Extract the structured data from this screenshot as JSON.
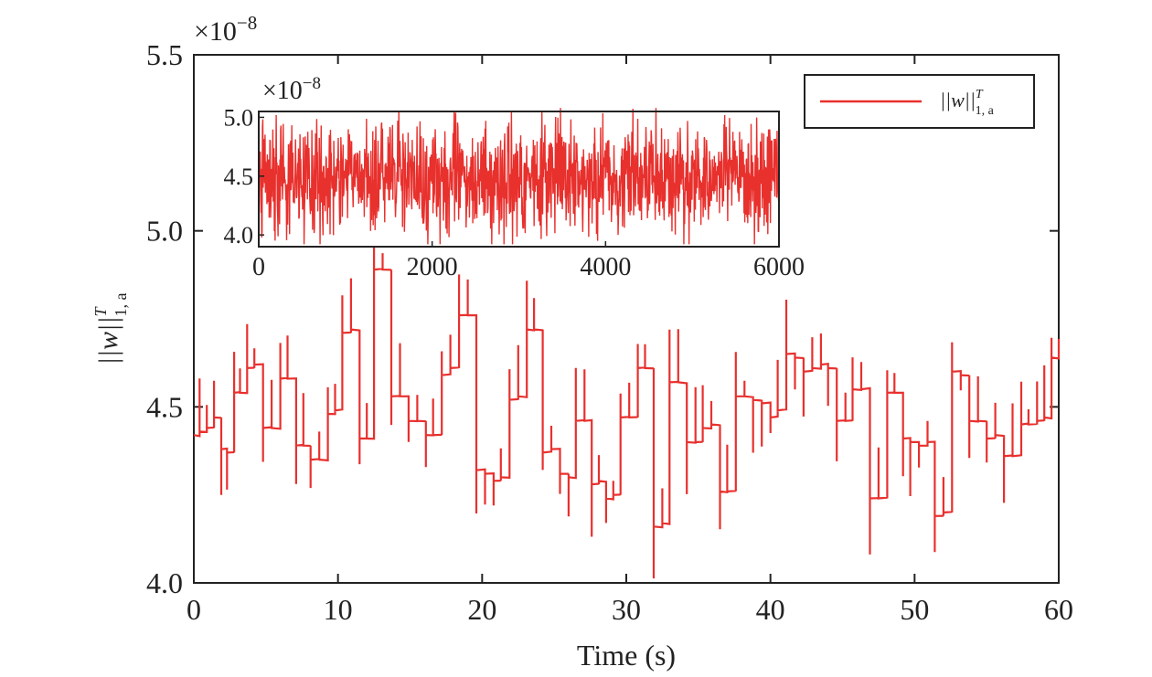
{
  "chart_data": [
    {
      "type": "line",
      "xlabel": "Time (s)",
      "ylabel_base": "||w||",
      "ylabel_sup": "T",
      "ylabel_sub": "1, a",
      "scale_exponent_label": "×10",
      "scale_exponent": "−8",
      "xlim": [
        0,
        60
      ],
      "ylim": [
        4.0,
        5.5
      ],
      "xticks": [
        0,
        10,
        20,
        30,
        40,
        50,
        60
      ],
      "xtick_labels": [
        "0",
        "10",
        "20",
        "30",
        "40",
        "50",
        "60"
      ],
      "yticks": [
        4.0,
        4.5,
        5.0,
        5.5
      ],
      "ytick_labels": [
        "4.0",
        "4.5",
        "5.0",
        "5.5"
      ],
      "legend": {
        "position": "top-right",
        "entry_base": "||w||",
        "entry_sup": "T",
        "entry_sub": "1, a"
      },
      "series": [
        {
          "color": "#e8302d",
          "x": [
            0,
            0.4,
            0.9,
            1.4,
            1.9,
            2.3,
            2.8,
            3.2,
            3.7,
            4.2,
            4.8,
            5.4,
            6.0,
            6.5,
            7.1,
            7.6,
            8.1,
            8.7,
            9.3,
            9.8,
            10.3,
            10.9,
            11.5,
            12.0,
            12.5,
            13.1,
            13.7,
            14.3,
            14.9,
            15.5,
            16.1,
            16.6,
            17.2,
            17.8,
            18.4,
            19.0,
            19.6,
            20.2,
            20.8,
            21.3,
            21.9,
            22.5,
            23.1,
            23.6,
            24.2,
            24.8,
            25.4,
            26.0,
            26.5,
            27.1,
            27.6,
            28.1,
            28.6,
            29.1,
            29.6,
            30.2,
            30.8,
            31.3,
            31.9,
            32.5,
            33.0,
            33.6,
            34.2,
            34.8,
            35.3,
            35.9,
            36.5,
            37.0,
            37.6,
            38.2,
            38.8,
            39.4,
            40.0,
            40.5,
            41.1,
            41.7,
            42.3,
            42.9,
            43.5,
            44.0,
            44.6,
            45.2,
            45.7,
            46.3,
            46.9,
            47.5,
            48.1,
            48.6,
            49.2,
            49.7,
            50.3,
            50.9,
            51.4,
            52.0,
            52.6,
            53.2,
            53.8,
            54.4,
            55.0,
            55.6,
            56.2,
            56.8,
            57.4,
            57.9,
            58.5,
            59.0,
            59.5,
            60.0
          ],
          "y": [
            4.42,
            4.43,
            4.44,
            4.47,
            4.38,
            4.37,
            4.54,
            4.54,
            4.61,
            4.62,
            4.44,
            4.44,
            4.58,
            4.58,
            4.39,
            4.39,
            4.35,
            4.35,
            4.48,
            4.49,
            4.71,
            4.72,
            4.41,
            4.41,
            4.89,
            4.89,
            4.53,
            4.53,
            4.46,
            4.46,
            4.42,
            4.42,
            4.59,
            4.61,
            4.76,
            4.76,
            4.32,
            4.31,
            4.29,
            4.3,
            4.52,
            4.53,
            4.72,
            4.72,
            4.37,
            4.38,
            4.31,
            4.3,
            4.46,
            4.46,
            4.28,
            4.29,
            4.24,
            4.25,
            4.47,
            4.47,
            4.61,
            4.61,
            4.16,
            4.17,
            4.57,
            4.57,
            4.4,
            4.4,
            4.44,
            4.45,
            4.26,
            4.26,
            4.53,
            4.53,
            4.52,
            4.51,
            4.47,
            4.49,
            4.65,
            4.64,
            4.6,
            4.61,
            4.62,
            4.61,
            4.46,
            4.46,
            4.55,
            4.55,
            4.24,
            4.24,
            4.54,
            4.54,
            4.41,
            4.4,
            4.39,
            4.4,
            4.19,
            4.2,
            4.6,
            4.59,
            4.46,
            4.46,
            4.41,
            4.42,
            4.36,
            4.36,
            4.45,
            4.45,
            4.46,
            4.47,
            4.64,
            4.64
          ]
        }
      ]
    },
    {
      "type": "line",
      "scale_exponent_label": "×10",
      "scale_exponent": "−8",
      "xlim": [
        0,
        6000
      ],
      "ylim": [
        3.9,
        5.05
      ],
      "xticks": [
        0,
        2000,
        4000,
        6000
      ],
      "xtick_labels": [
        "0",
        "2000",
        "4000",
        "6000"
      ],
      "yticks": [
        4.0,
        4.5,
        5.0
      ],
      "ytick_labels": [
        "4.0",
        "4.5",
        "5.0"
      ],
      "series": [
        {
          "color": "#e8302d",
          "x": [
            0,
            6000
          ],
          "y": [
            4.48,
            4.48
          ]
        }
      ]
    }
  ]
}
